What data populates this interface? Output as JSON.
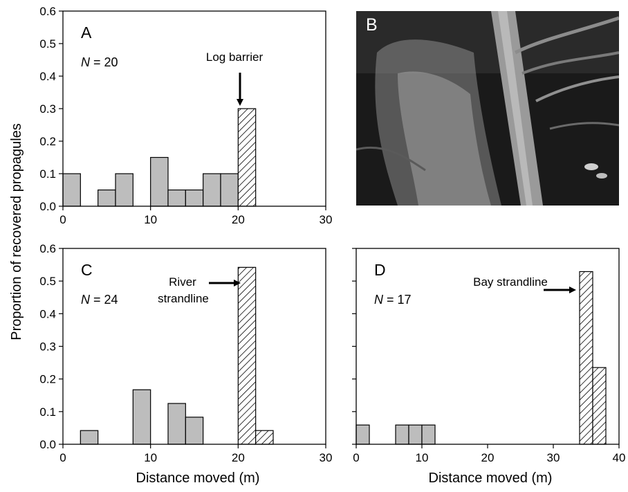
{
  "figure": {
    "ylabel": "Proportion of recovered propagules",
    "xlabel": "Distance moved (m)"
  },
  "photo": {
    "label": "B"
  },
  "chart_data": [
    {
      "type": "bar",
      "panel": "A",
      "n_label": "N = 20",
      "xlim": [
        0,
        30
      ],
      "ylim": [
        0,
        0.6
      ],
      "xticks": [
        0,
        10,
        20,
        30
      ],
      "yticks": [
        0.0,
        0.1,
        0.2,
        0.3,
        0.4,
        0.5,
        0.6
      ],
      "bin_width": 2,
      "series": [
        {
          "fill": "#bdbdbd",
          "bins": [
            [
              0,
              0.1
            ],
            [
              4,
              0.05
            ],
            [
              6,
              0.1
            ],
            [
              10,
              0.15
            ],
            [
              12,
              0.05
            ],
            [
              14,
              0.05
            ],
            [
              16,
              0.1
            ],
            [
              18,
              0.1
            ]
          ]
        },
        {
          "fill": "hatch",
          "bins": [
            [
              20,
              0.3
            ]
          ]
        }
      ],
      "annotation": {
        "text": "Log barrier",
        "arrow": "down"
      }
    },
    {
      "type": "bar",
      "panel": "C",
      "n_label": "N = 24",
      "xlim": [
        0,
        30
      ],
      "ylim": [
        0,
        0.6
      ],
      "xticks": [
        0,
        10,
        20,
        30
      ],
      "yticks": [
        0.0,
        0.1,
        0.2,
        0.3,
        0.4,
        0.5,
        0.6
      ],
      "bin_width": 2,
      "series": [
        {
          "fill": "#bdbdbd",
          "bins": [
            [
              2,
              0.042
            ],
            [
              8,
              0.167
            ],
            [
              12,
              0.125
            ],
            [
              14,
              0.083
            ]
          ]
        },
        {
          "fill": "hatch",
          "bins": [
            [
              20,
              0.542
            ],
            [
              22,
              0.042
            ]
          ]
        }
      ],
      "annotation": {
        "text": [
          "River",
          "strandline"
        ],
        "arrow": "right"
      }
    },
    {
      "type": "bar",
      "panel": "D",
      "n_label": "N = 17",
      "xlim": [
        0,
        40
      ],
      "ylim": [
        0,
        0.6
      ],
      "xticks": [
        0,
        10,
        20,
        30,
        40
      ],
      "yticks": [
        0.0,
        0.1,
        0.2,
        0.3,
        0.4,
        0.5,
        0.6
      ],
      "bin_width": 2,
      "series": [
        {
          "fill": "#bdbdbd",
          "bins": [
            [
              0,
              0.059
            ],
            [
              6,
              0.059
            ],
            [
              8,
              0.059
            ],
            [
              10,
              0.059
            ]
          ]
        },
        {
          "fill": "hatch",
          "bins": [
            [
              34,
              0.529
            ],
            [
              36,
              0.235
            ]
          ]
        }
      ],
      "annotation": {
        "text": "Bay strandline",
        "arrow": "right"
      }
    }
  ]
}
